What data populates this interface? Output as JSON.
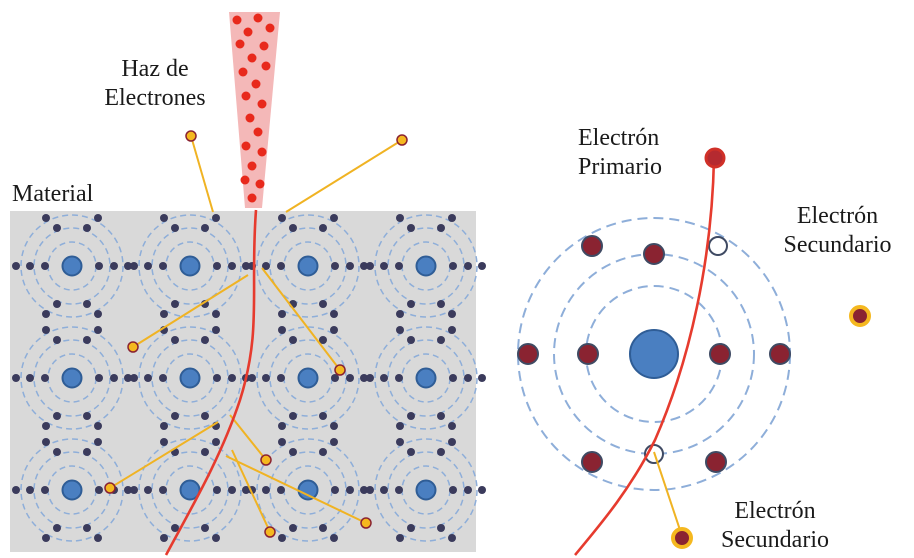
{
  "labels": {
    "beam": [
      "Haz de",
      "Electrones"
    ],
    "material": "Material",
    "primary": [
      "Electrón",
      "Primario"
    ],
    "secondary_right": [
      "Electrón",
      "Secundario"
    ],
    "secondary_bottom": [
      "Electrón",
      "Secundario"
    ]
  },
  "lattice": {
    "rows": 3,
    "cols": 4
  },
  "colors": {
    "material_fill": "#d9d9d9",
    "beam_fill": "#f4b8b8",
    "beam_electron": "#e8291c",
    "nucleus": "#4a7fc1",
    "nucleus_stroke": "#2f5d96",
    "lattice_electron": "#3b3b5c",
    "orbit": "#8eaed9",
    "primary_path": "#e63b2e",
    "secondary_path": "#f0b323",
    "secondary_fill": "#f5b81f",
    "secondary_core": "#8a2331",
    "atom_electron": "#8a2331",
    "atom_electron_stroke": "#3f4a63"
  }
}
